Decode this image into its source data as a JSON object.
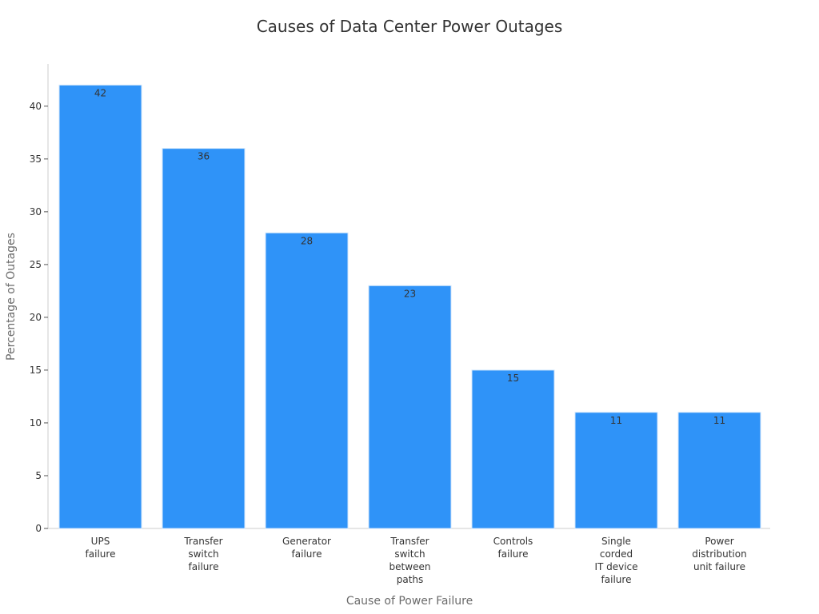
{
  "chart_data": {
    "type": "bar",
    "title": "Causes of Data Center Power Outages",
    "xlabel": "Cause of Power Failure",
    "ylabel": "Percentage of Outages",
    "categories": [
      [
        "UPS",
        "failure"
      ],
      [
        "Transfer",
        "switch",
        "failure"
      ],
      [
        "Generator",
        "failure"
      ],
      [
        "Transfer",
        "switch",
        "between",
        "paths"
      ],
      [
        "Controls",
        "failure"
      ],
      [
        "Single",
        "corded",
        "IT device",
        "failure"
      ],
      [
        "Power",
        "distribution",
        "unit failure"
      ]
    ],
    "values": [
      42,
      36,
      28,
      23,
      15,
      11,
      11
    ],
    "data_labels": [
      "42",
      "36",
      "28",
      "23",
      "15",
      "11",
      "11"
    ],
    "yticks": [
      0,
      5,
      10,
      15,
      20,
      25,
      30,
      35,
      40
    ],
    "ylim": [
      0,
      44
    ],
    "grid": false,
    "legend": "none",
    "bar_color": "#2f93f8",
    "bar_edge_color": "#d0e6fb"
  }
}
